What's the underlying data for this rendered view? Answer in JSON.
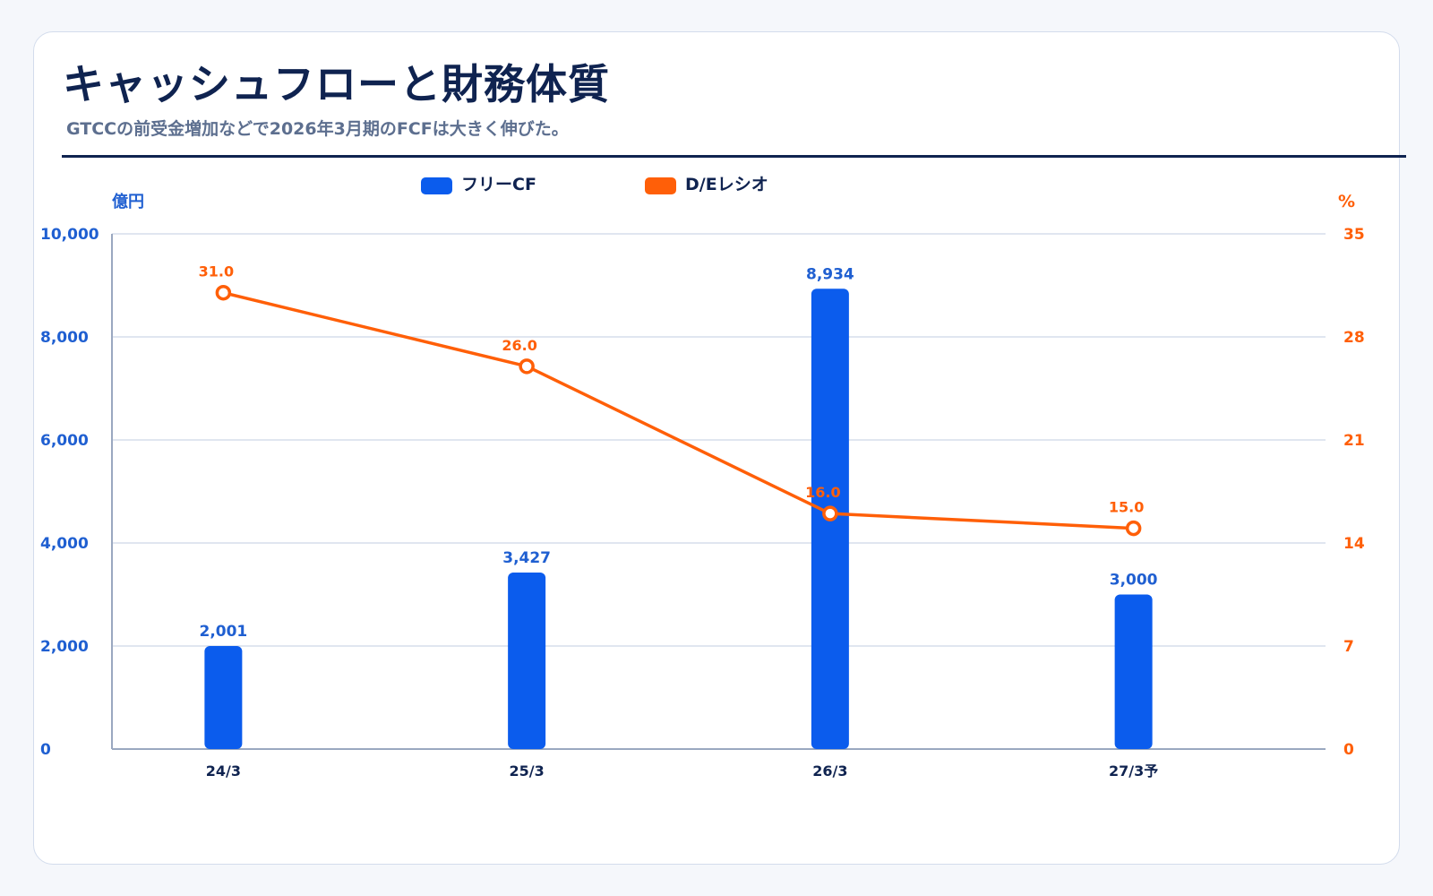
{
  "title": "キャッシュフローと財務体質",
  "subtitle": "GTCCの前受金増加などで2026年3月期のFCFは大きく伸びた。",
  "colors": {
    "bar": "#0b5ced",
    "line": "#ff5f08",
    "axis_left": "#1f5fd1",
    "axis_right": "#ff5f08",
    "grid": "#d5deec",
    "category_text": "#0f2350"
  },
  "chart_data": {
    "type": "bar+line",
    "categories": [
      "24/3",
      "25/3",
      "26/3",
      "27/3予"
    ],
    "series": [
      {
        "name": "フリーCF",
        "type": "bar",
        "axis": "left",
        "values": [
          2001,
          3427,
          8934,
          3000
        ],
        "labels": [
          "2,001",
          "3,427",
          "8,934",
          "3,000"
        ]
      },
      {
        "name": "D/Eレシオ",
        "type": "line",
        "axis": "right",
        "values": [
          31.0,
          26.0,
          16.0,
          15.0
        ],
        "labels": [
          "31.0",
          "26.0",
          "16.0",
          "15.0"
        ]
      }
    ],
    "y_left": {
      "label": "億円",
      "range": [
        0,
        10000
      ],
      "ticks": [
        0,
        2000,
        4000,
        6000,
        8000,
        10000
      ],
      "tick_labels": [
        "0",
        "2,000",
        "4,000",
        "6,000",
        "8,000",
        "10,000"
      ]
    },
    "y_right": {
      "label": "%",
      "range": [
        0,
        35
      ],
      "ticks": [
        0,
        7,
        14,
        21,
        28,
        35
      ],
      "tick_labels": [
        "0",
        "7",
        "14",
        "21",
        "28",
        "35"
      ]
    },
    "grid": true,
    "legend_position": "top-center"
  }
}
